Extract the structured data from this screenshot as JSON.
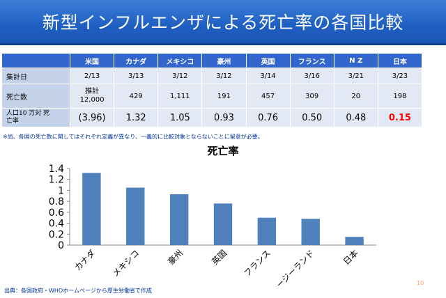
{
  "title": "新型インフルエンザによる死亡率の各国比較",
  "table": {
    "countries": [
      "米国",
      "カナダ",
      "メキシコ",
      "豪州",
      "英国",
      "フランス",
      "N Z",
      "日本"
    ],
    "rows": [
      {
        "label": "集計日",
        "values": [
          "2/13",
          "3/13",
          "3/12",
          "3/12",
          "3/14",
          "3/16",
          "3/21",
          "3/23"
        ]
      },
      {
        "label": "死亡数",
        "values": [
          "推計 12,000",
          "429",
          "1,111",
          "191",
          "457",
          "309",
          "20",
          "198"
        ]
      },
      {
        "label": "人口10 万対 死亡率",
        "values": [
          "(3.96)",
          "1.32",
          "1.05",
          "0.93",
          "0.76",
          "0.50",
          "0.48",
          "0.15"
        ]
      }
    ],
    "highlight_color": "#ff0000"
  },
  "note": "※尚、各国の死亡数に関してはそれぞれ定義が異なり、一義的に比較対象とならないことに留意が必要。",
  "chart_data": {
    "type": "bar",
    "title": "死亡率",
    "categories": [
      "カナダ",
      "メキシコ",
      "豪州",
      "英国",
      "フランス",
      "ニュージーランド",
      "日本"
    ],
    "values": [
      1.32,
      1.05,
      0.93,
      0.76,
      0.5,
      0.48,
      0.15
    ],
    "ylim": [
      0,
      1.4
    ],
    "yticks": [
      "0",
      "0.2",
      "0.4",
      "0.6",
      "0.8",
      "1",
      "1.2",
      "1.4"
    ],
    "xlabel": "",
    "ylabel": "",
    "bar_color": "#4f81bd",
    "grid": false,
    "legend": "none"
  },
  "footer": "出典：各国政府・WHOホームページから厚生労働省で作成",
  "page_number": "10"
}
